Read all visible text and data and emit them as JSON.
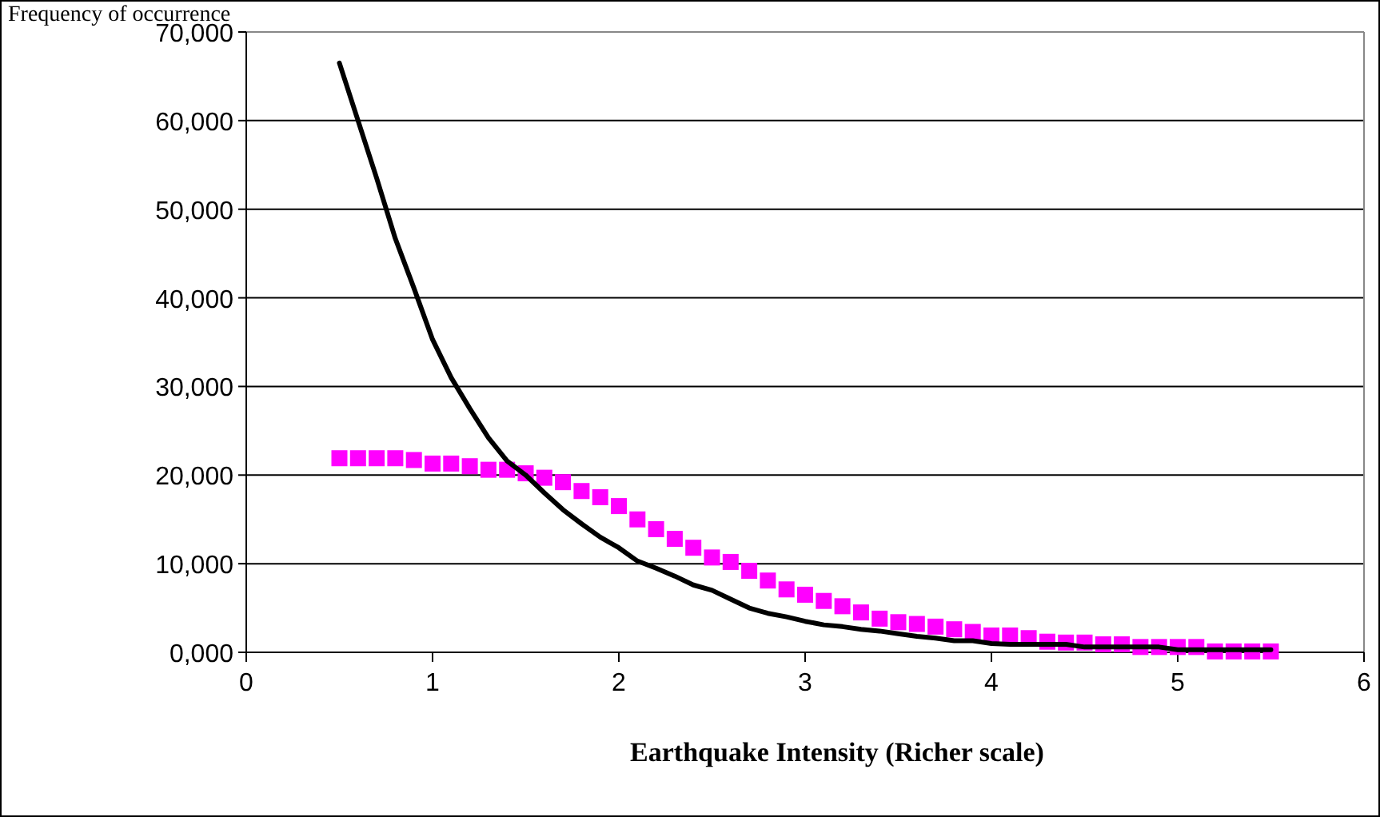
{
  "chart_data": {
    "type": "line",
    "xlabel": "Earthquake Intensity (Richer scale)",
    "ylabel": "Frequency of occurrence",
    "x": [
      0.5,
      0.6,
      0.7,
      0.8,
      0.9,
      1.0,
      1.1,
      1.2,
      1.3,
      1.4,
      1.5,
      1.6,
      1.7,
      1.8,
      1.9,
      2.0,
      2.1,
      2.2,
      2.3,
      2.4,
      2.5,
      2.6,
      2.7,
      2.8,
      2.9,
      3.0,
      3.1,
      3.2,
      3.3,
      3.4,
      3.5,
      3.6,
      3.7,
      3.8,
      3.9,
      4.0,
      4.1,
      4.2,
      4.3,
      4.4,
      4.5,
      4.6,
      4.7,
      4.8,
      4.9,
      5.0,
      5.1,
      5.2,
      5.3,
      5.4,
      5.5
    ],
    "series": [
      {
        "type": "scatter",
        "color": "#ff00ff",
        "marker": "square",
        "values": [
          21900,
          21900,
          21900,
          21900,
          21700,
          21300,
          21300,
          21000,
          20600,
          20600,
          20200,
          19700,
          19200,
          18200,
          17500,
          16500,
          15000,
          13900,
          12800,
          11800,
          10700,
          10200,
          9200,
          8100,
          7100,
          6500,
          5800,
          5200,
          4500,
          3800,
          3400,
          3200,
          2900,
          2600,
          2300,
          1900,
          1900,
          1600,
          1200,
          1100,
          1100,
          900,
          900,
          600,
          600,
          600,
          600,
          100,
          100,
          100,
          100
        ]
      },
      {
        "color": "#000000",
        "marker": "none",
        "line_style": "solid",
        "values": [
          66500,
          60000,
          53500,
          46700,
          41100,
          35300,
          31000,
          27500,
          24200,
          21600,
          20000,
          18000,
          16100,
          14500,
          13000,
          11800,
          10300,
          9500,
          8600,
          7600,
          7000,
          6000,
          5000,
          4400,
          4000,
          3500,
          3100,
          2900,
          2600,
          2400,
          2100,
          1800,
          1600,
          1300,
          1300,
          1000,
          900,
          900,
          900,
          900,
          600,
          600,
          600,
          600,
          600,
          300,
          300,
          300,
          300,
          300,
          300
        ]
      }
    ],
    "xlim": [
      0,
      6
    ],
    "xticks": [
      0,
      1,
      2,
      3,
      4,
      5,
      6
    ],
    "ylim": [
      0,
      70000
    ],
    "yticks": [
      {
        "value": 0,
        "label": "0,000"
      },
      {
        "value": 10000,
        "label": "10,000"
      },
      {
        "value": 20000,
        "label": "20,000"
      },
      {
        "value": 30000,
        "label": "30,000"
      },
      {
        "value": 40000,
        "label": "40,000"
      },
      {
        "value": 50000,
        "label": "50,000"
      },
      {
        "value": 60000,
        "label": "60,000"
      },
      {
        "value": 70000,
        "label": "70,000"
      }
    ],
    "grid": "y"
  }
}
